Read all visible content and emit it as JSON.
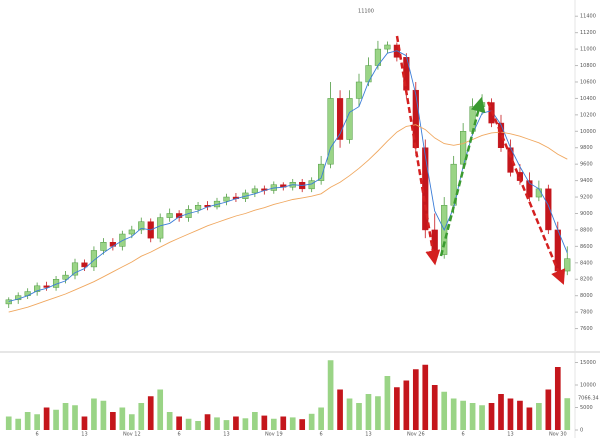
{
  "chart_data": {
    "type": "candlestick",
    "categories": [
      null,
      null,
      null,
      "6",
      null,
      null,
      null,
      null,
      "13",
      null,
      null,
      null,
      null,
      "Nov 12",
      null,
      null,
      null,
      null,
      "6",
      null,
      null,
      null,
      null,
      "13",
      null,
      null,
      null,
      null,
      "Nov 19",
      null,
      null,
      null,
      null,
      "6",
      null,
      null,
      null,
      null,
      "13",
      null,
      null,
      null,
      null,
      "Nov 26",
      null,
      null,
      null,
      null,
      "6",
      null,
      null,
      null,
      null,
      "13",
      null,
      null,
      null,
      null,
      "Nov 30",
      null
    ],
    "open": [
      7900,
      7950,
      8000,
      8050,
      8120,
      8100,
      8200,
      8250,
      8400,
      8350,
      8550,
      8650,
      8600,
      8750,
      8800,
      8900,
      8700,
      8950,
      9000,
      8950,
      9050,
      9100,
      9080,
      9150,
      9200,
      9180,
      9250,
      9300,
      9280,
      9350,
      9320,
      9380,
      9300,
      9400,
      9600,
      10400,
      9900,
      10400,
      10600,
      10800,
      11000,
      11050,
      10900,
      10500,
      9800,
      8800,
      8500,
      9100,
      9600,
      10000,
      10300,
      10350,
      10100,
      9800,
      9500,
      9400,
      9200,
      9300,
      8800,
      8300
    ],
    "high": [
      7980,
      8040,
      8090,
      8160,
      8170,
      8240,
      8300,
      8450,
      8440,
      8600,
      8700,
      8700,
      8790,
      8850,
      8950,
      8940,
      9000,
      9060,
      9040,
      9100,
      9140,
      9150,
      9190,
      9240,
      9250,
      9290,
      9340,
      9340,
      9390,
      9380,
      9420,
      9420,
      9440,
      9700,
      10600,
      10500,
      10500,
      10700,
      10900,
      11100,
      11093,
      11080,
      10950,
      10600,
      9900,
      9000,
      9200,
      9700,
      10100,
      10400,
      10450,
      10400,
      10200,
      9900,
      9600,
      9500,
      9400,
      9350,
      8900,
      8600
    ],
    "low": [
      7850,
      7900,
      7960,
      8000,
      8060,
      8060,
      8150,
      8200,
      8300,
      8300,
      8500,
      8550,
      8550,
      8700,
      8750,
      8650,
      8650,
      8900,
      8900,
      8900,
      9000,
      9040,
      9050,
      9100,
      9140,
      9140,
      9200,
      9230,
      9240,
      9280,
      9280,
      9260,
      9260,
      9350,
      9550,
      9800,
      9850,
      10300,
      10550,
      10750,
      10950,
      10850,
      10400,
      9700,
      8700,
      8400,
      8450,
      9000,
      9550,
      9950,
      10200,
      10050,
      9750,
      9450,
      9350,
      9150,
      9150,
      8750,
      8250,
      8250
    ],
    "close": [
      7950,
      8000,
      8050,
      8120,
      8100,
      8200,
      8250,
      8400,
      8350,
      8550,
      8650,
      8600,
      8750,
      8800,
      8900,
      8700,
      8950,
      9000,
      8950,
      9050,
      9100,
      9080,
      9150,
      9200,
      9180,
      9250,
      9300,
      9280,
      9350,
      9320,
      9380,
      9300,
      9400,
      9600,
      10400,
      9900,
      10400,
      10600,
      10800,
      11000,
      11050,
      10900,
      10500,
      9800,
      8800,
      8500,
      9100,
      9600,
      10000,
      10300,
      10350,
      10100,
      9800,
      9500,
      9400,
      9200,
      9300,
      8800,
      8300,
      8450
    ],
    "up_color": "#9ad486",
    "down_color": "#c4161c",
    "ylim": [
      7400,
      11500
    ],
    "yticks": [
      7600,
      7800,
      8000,
      8200,
      8400,
      8600,
      8800,
      9000,
      9200,
      9400,
      9600,
      9800,
      10000,
      10200,
      10400,
      10600,
      10800,
      11000,
      11200,
      11400
    ],
    "lines": [
      {
        "color": "#3b7dd8",
        "values": [
          7930,
          7960,
          8000,
          8060,
          8090,
          8140,
          8180,
          8280,
          8330,
          8430,
          8520,
          8600,
          8670,
          8720,
          8820,
          8800,
          8850,
          8880,
          8960,
          9000,
          9030,
          9080,
          9110,
          9140,
          9180,
          9210,
          9240,
          9280,
          9310,
          9320,
          9350,
          9340,
          9360,
          9430,
          9800,
          9970,
          10230,
          10300,
          10600,
          10800,
          10950,
          10980,
          10920,
          10450,
          9700,
          9030,
          8800,
          9070,
          9570,
          9970,
          10220,
          10250,
          10080,
          9800,
          9570,
          9370,
          9300,
          9100,
          8800,
          8520
        ]
      },
      {
        "color": "#f0a860",
        "values": [
          7800,
          7830,
          7860,
          7900,
          7940,
          7980,
          8020,
          8070,
          8120,
          8170,
          8230,
          8290,
          8350,
          8410,
          8480,
          8530,
          8590,
          8650,
          8700,
          8750,
          8800,
          8850,
          8890,
          8930,
          8970,
          9000,
          9040,
          9070,
          9110,
          9140,
          9170,
          9190,
          9210,
          9240,
          9320,
          9380,
          9460,
          9550,
          9650,
          9760,
          9880,
          9990,
          10060,
          10080,
          10020,
          9920,
          9850,
          9830,
          9850,
          9900,
          9950,
          9980,
          9990,
          9970,
          9940,
          9900,
          9860,
          9800,
          9720,
          9660
        ]
      }
    ],
    "volume": {
      "values": [
        3000,
        2500,
        4000,
        3500,
        5000,
        4500,
        6000,
        5500,
        3000,
        7000,
        6500,
        4000,
        5000,
        3500,
        6000,
        7500,
        9000,
        4000,
        3000,
        2500,
        2000,
        3500,
        2800,
        2200,
        3000,
        2600,
        4000,
        3200,
        2500,
        3000,
        2800,
        2400,
        3600,
        5000,
        15500,
        9000,
        7000,
        6000,
        8000,
        7500,
        12000,
        9500,
        11000,
        13500,
        14500,
        10000,
        8500,
        7000,
        6500,
        6000,
        5500,
        6000,
        8000,
        7000,
        6500,
        5000,
        6000,
        9000,
        14000,
        7066.34
      ],
      "ylim": [
        0,
        16000
      ],
      "yticks": [
        0,
        5000,
        10000,
        15000
      ]
    }
  }
}
